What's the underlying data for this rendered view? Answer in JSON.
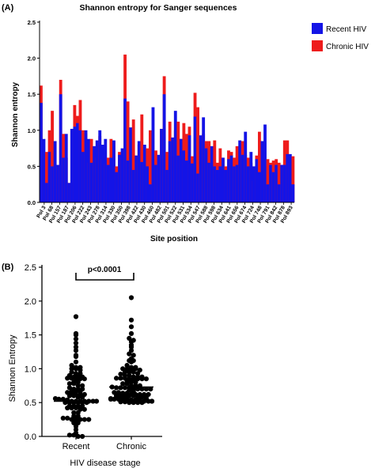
{
  "panel_a": {
    "label": "(A)",
    "chart_data": {
      "type": "bar",
      "title": "Shannon entropy for Sanger sequences",
      "xlabel": "Site position",
      "ylabel": "Shannon entropy",
      "ylim": [
        0,
        2.5
      ],
      "yticks": [
        "0.0",
        "0.5",
        "1.0",
        "1.5",
        "2.0",
        "2.5"
      ],
      "x_tick_labels": [
        "Pol 3",
        "Pol 68",
        "Pol 157",
        "Pol 187",
        "Pol 206",
        "Pol 222",
        "Pol 243",
        "Pol 278",
        "Pol 314",
        "Pol 330",
        "Pol 350",
        "Pol 398",
        "Pol 422",
        "Pol 430",
        "Pol 460",
        "Pol 482",
        "Pol 501",
        "Pol 522",
        "Pol 531",
        "Pol 534",
        "Pol 547",
        "Pol 588",
        "Pol 598",
        "Pol 634",
        "Pol 641",
        "Pol 656",
        "Pol 674",
        "Pol 724",
        "Pol 748",
        "Pol 791",
        "Pol 842",
        "Pol 878",
        "Pol 893"
      ],
      "legend_position": "top-right",
      "series": [
        {
          "name": "Recent HIV",
          "color": "#1414e6",
          "values": [
            1.38,
            0.88,
            0.27,
            0.7,
            0.5,
            0.85,
            0.52,
            1.5,
            0.62,
            0.95,
            0.27,
            1.02,
            1.05,
            1.1,
            1.0,
            0.7,
            1.0,
            0.88,
            0.55,
            0.78,
            0.86,
            1.0,
            0.8,
            0.88,
            0.52,
            0.62,
            0.86,
            0.42,
            0.66,
            0.75,
            1.44,
            0.58,
            1.04,
            0.45,
            0.65,
            0.85,
            0.56,
            0.8,
            0.5,
            0.25,
            1.32,
            0.52,
            0.66,
            1.02,
            1.5,
            0.45,
            0.85,
            0.9,
            1.27,
            0.65,
            0.88,
            0.72,
            0.58,
            0.93,
            0.54,
            1.19,
            0.4,
            0.93,
            1.18,
            0.75,
            0.55,
            0.78,
            0.5,
            0.45,
            0.5,
            0.62,
            0.45,
            0.6,
            0.65,
            0.5,
            0.52,
            0.86,
            0.66,
            0.98,
            0.5,
            0.7,
            0.5,
            0.6,
            0.42,
            0.85,
            1.08,
            0.25,
            0.52,
            0.42,
            0.52,
            0.25,
            0.52,
            0.52,
            0.67,
            0.67,
            0.25
          ]
        },
        {
          "name": "Chronic HIV",
          "color": "#ee1c1c",
          "values": [
            1.62,
            0.7,
            0.7,
            1.0,
            1.27,
            0.85,
            0.5,
            1.7,
            0.95,
            0.62,
            0.27,
            1.02,
            1.35,
            1.2,
            1.42,
            1.0,
            0.95,
            0.55,
            0.88,
            0.73,
            0.62,
            0.92,
            0.6,
            0.54,
            0.62,
            0.88,
            0.85,
            0.5,
            0.7,
            0.62,
            2.05,
            1.4,
            0.6,
            1.15,
            0.65,
            0.8,
            1.22,
            0.72,
            0.75,
            1.0,
            0.6,
            0.72,
            0.6,
            1.02,
            1.75,
            0.7,
            1.12,
            0.9,
            1.0,
            1.12,
            0.88,
            1.1,
            0.95,
            1.05,
            0.64,
            1.52,
            1.32,
            0.88,
            0.95,
            0.85,
            0.85,
            0.72,
            0.86,
            0.55,
            0.75,
            0.62,
            0.5,
            0.72,
            0.7,
            0.62,
            0.78,
            0.7,
            0.85,
            0.66,
            0.62,
            0.55,
            0.3,
            0.65,
            0.98,
            0.85,
            0.5,
            0.6,
            0.55,
            0.58,
            0.6,
            0.55,
            0.52,
            0.86,
            0.86,
            0.55,
            0.64
          ]
        }
      ]
    }
  },
  "panel_b": {
    "label": "(B)",
    "chart_data": {
      "type": "scatter",
      "xlabel": "HIV disease stage",
      "ylabel": "Shannon Entropy",
      "ylim": [
        0,
        2.5
      ],
      "yticks": [
        "0.0",
        "0.5",
        "1.0",
        "1.5",
        "2.0",
        "2.5"
      ],
      "categories": [
        "Recent",
        "Chronic"
      ],
      "annotation": "p<0.0001",
      "series": [
        {
          "category": "Recent",
          "median": 0.52,
          "values": [
            1.77,
            1.52,
            1.5,
            1.44,
            1.38,
            1.32,
            1.27,
            1.2,
            1.18,
            1.1,
            1.05,
            1.02,
            1.02,
            1.0,
            1.0,
            0.98,
            0.95,
            0.93,
            0.93,
            0.9,
            0.88,
            0.88,
            0.88,
            0.86,
            0.86,
            0.85,
            0.85,
            0.85,
            0.8,
            0.8,
            0.78,
            0.78,
            0.75,
            0.75,
            0.72,
            0.7,
            0.7,
            0.7,
            0.67,
            0.66,
            0.66,
            0.65,
            0.65,
            0.62,
            0.62,
            0.62,
            0.6,
            0.6,
            0.58,
            0.58,
            0.56,
            0.55,
            0.55,
            0.54,
            0.52,
            0.52,
            0.52,
            0.52,
            0.52,
            0.52,
            0.52,
            0.5,
            0.5,
            0.5,
            0.5,
            0.5,
            0.5,
            0.45,
            0.45,
            0.45,
            0.45,
            0.42,
            0.42,
            0.42,
            0.4,
            0.4,
            0.35,
            0.35,
            0.3,
            0.3,
            0.27,
            0.27,
            0.25,
            0.25,
            0.25,
            0.25,
            0.25,
            0.2,
            0.2,
            0.15,
            0.1,
            0.05,
            0.02,
            0.02,
            0.0,
            0.0
          ]
        },
        {
          "category": "Chronic",
          "median": 0.73,
          "values": [
            2.05,
            1.72,
            1.62,
            1.52,
            1.45,
            1.42,
            1.4,
            1.35,
            1.32,
            1.27,
            1.22,
            1.2,
            1.15,
            1.12,
            1.12,
            1.1,
            1.05,
            1.02,
            1.02,
            1.0,
            1.0,
            1.0,
            1.0,
            0.98,
            0.95,
            0.95,
            0.95,
            0.93,
            0.92,
            0.9,
            0.9,
            0.88,
            0.88,
            0.88,
            0.86,
            0.86,
            0.86,
            0.85,
            0.85,
            0.85,
            0.85,
            0.85,
            0.82,
            0.8,
            0.8,
            0.78,
            0.78,
            0.75,
            0.75,
            0.75,
            0.73,
            0.72,
            0.72,
            0.72,
            0.72,
            0.7,
            0.7,
            0.7,
            0.7,
            0.7,
            0.68,
            0.66,
            0.65,
            0.65,
            0.64,
            0.64,
            0.62,
            0.62,
            0.62,
            0.62,
            0.62,
            0.6,
            0.6,
            0.6,
            0.6,
            0.6,
            0.58,
            0.58,
            0.57,
            0.56,
            0.55,
            0.55,
            0.55,
            0.55,
            0.55,
            0.54,
            0.54,
            0.53,
            0.52,
            0.52,
            0.52,
            0.52,
            0.51,
            0.51,
            0.5,
            0.5,
            0.5,
            0.5
          ]
        }
      ]
    }
  }
}
